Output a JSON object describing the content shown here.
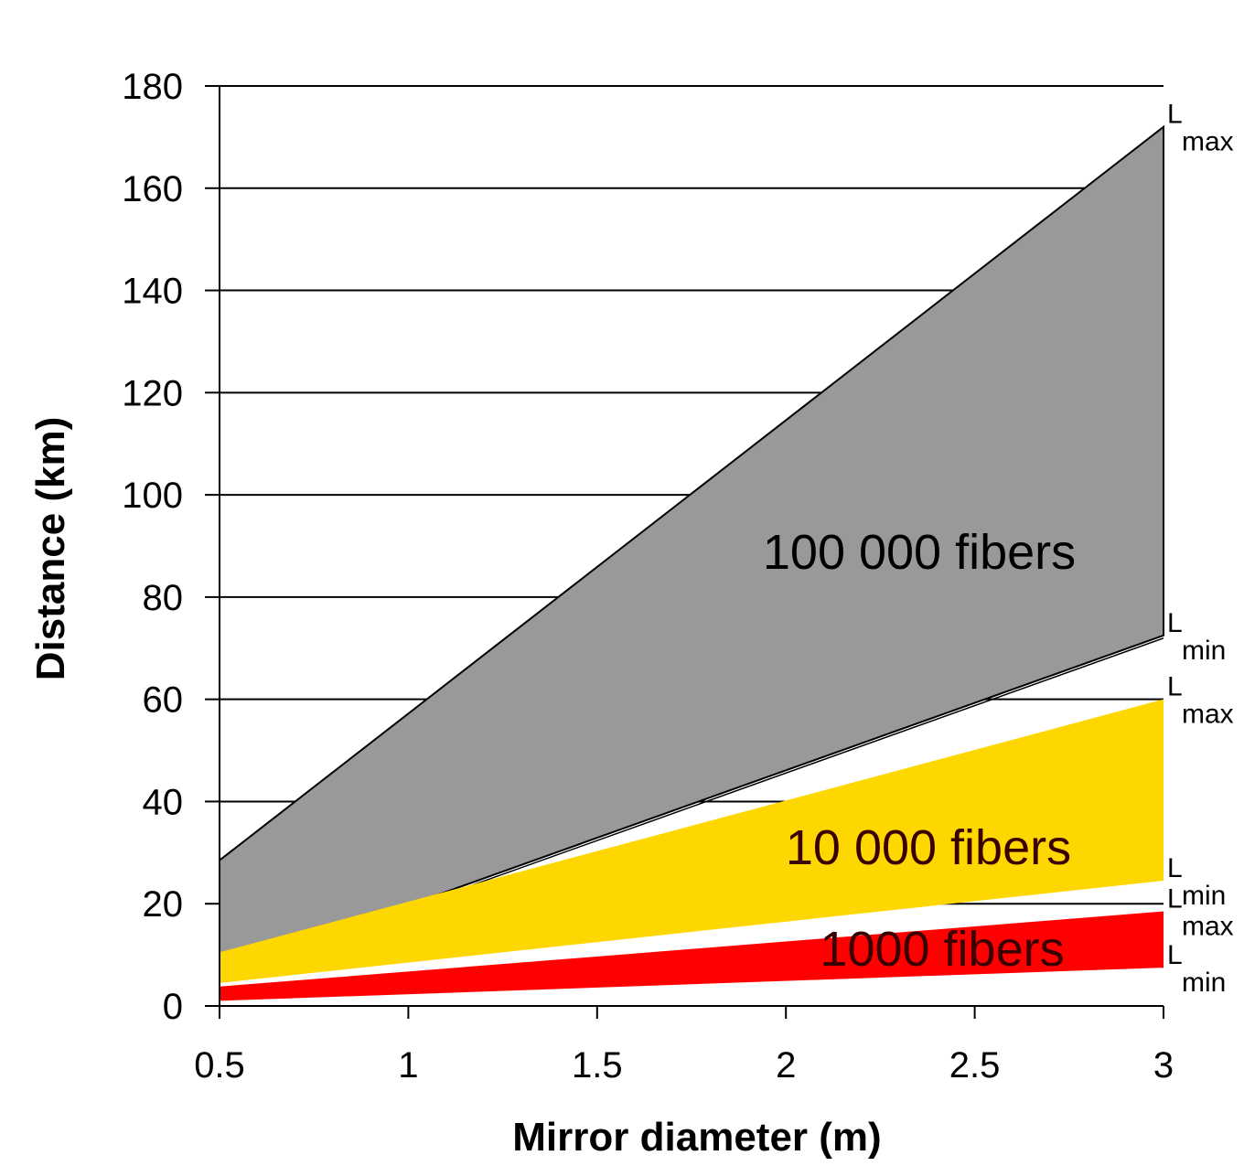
{
  "chart_data": {
    "type": "area",
    "xlabel": "Mirror diameter (m)",
    "ylabel": "Distance (km)",
    "xlim": [
      0.5,
      3
    ],
    "ylim": [
      0,
      180
    ],
    "xticks": [
      "0.5",
      "1",
      "1.5",
      "2",
      "2.5",
      "3"
    ],
    "yticks": [
      "0",
      "20",
      "40",
      "60",
      "80",
      "100",
      "120",
      "140",
      "160",
      "180"
    ],
    "grid": "horizontal",
    "series": [
      {
        "name": "100 000 fibers",
        "color": "#999999",
        "x": [
          0.5,
          3
        ],
        "lmax": [
          28.5,
          172
        ],
        "lmin": [
          6.5,
          72.5
        ]
      },
      {
        "name": "10 000 fibers",
        "color": "#FFD700",
        "x": [
          0.5,
          3
        ],
        "lmax": [
          10.5,
          60
        ],
        "lmin": [
          4.5,
          24.5
        ]
      },
      {
        "name": "1000 fibers",
        "color": "#FF0000",
        "x": [
          0.5,
          3
        ],
        "lmax": [
          3.8,
          18.5
        ],
        "lmin": [
          1,
          7.5
        ]
      }
    ],
    "edge_labels": [
      {
        "main": "L",
        "sub": "max",
        "series": 0,
        "edge": "lmax"
      },
      {
        "main": "L",
        "sub": "min",
        "series": 0,
        "edge": "lmin"
      },
      {
        "main": "L",
        "sub": "max",
        "series": 1,
        "edge": "lmax"
      },
      {
        "main": "L",
        "sub": "min",
        "series": 1,
        "edge": "lmin"
      },
      {
        "main": "L",
        "sub": "max",
        "series": 2,
        "edge": "lmax"
      },
      {
        "main": "L",
        "sub": "min",
        "series": 2,
        "edge": "lmin"
      }
    ]
  }
}
